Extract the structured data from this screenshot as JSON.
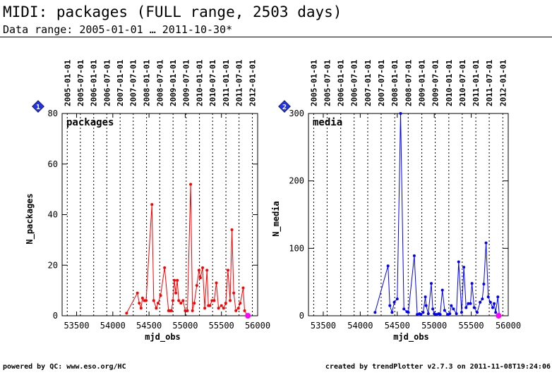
{
  "header": {
    "title": "MIDI: packages (FULL range, 2503 days)",
    "subtitle": "Data range: 2005-01-01 … 2011-10-30*"
  },
  "footer": {
    "left": "powered by QC: www.eso.org/HC",
    "right": "created by trendPlotter v2.7.3 on 2011-11-08T19:24:06"
  },
  "colors": {
    "packages": "#ff0000",
    "media": "#0000ff",
    "marker": "#2233ee",
    "latest": "#ff00ff"
  },
  "chart_data": [
    {
      "type": "line",
      "index": "1",
      "panel_label": "packages",
      "xlabel": "mjd_obs",
      "ylabel": "N_packages",
      "xlim": [
        53300,
        56000
      ],
      "ylim": [
        0,
        80
      ],
      "x_ticks": [
        53500,
        54000,
        54500,
        55000,
        55500,
        56000
      ],
      "y_ticks": [
        0,
        20,
        40,
        60,
        80
      ],
      "date_ticks": [
        "2005-01-01",
        "2005-07-01",
        "2006-01-01",
        "2006-07-01",
        "2007-01-01",
        "2007-07-01",
        "2008-01-01",
        "2008-07-01",
        "2009-01-01",
        "2009-07-01",
        "2010-01-01",
        "2010-07-01",
        "2011-01-01",
        "2011-07-01",
        "2012-01-01"
      ],
      "date_tick_mjd": [
        53371,
        53552,
        53736,
        53917,
        54101,
        54282,
        54466,
        54648,
        54832,
        55013,
        55197,
        55378,
        55562,
        55743,
        55927
      ],
      "grid": "vertical dotted at date ticks",
      "x": [
        54190,
        54340,
        54365,
        54390,
        54410,
        54435,
        54460,
        54540,
        54565,
        54600,
        54625,
        54660,
        54715,
        54770,
        54790,
        54810,
        54830,
        54850,
        54870,
        54890,
        54910,
        54940,
        54970,
        55000,
        55030,
        55075,
        55100,
        55125,
        55160,
        55190,
        55210,
        55240,
        55270,
        55300,
        55320,
        55340,
        55370,
        55400,
        55430,
        55460,
        55500,
        55530,
        55560,
        55590,
        55620,
        55645,
        55670,
        55700,
        55735,
        55760,
        55800,
        55820,
        55860,
        55870
      ],
      "values": [
        1,
        9,
        5,
        3,
        7,
        6,
        6,
        44,
        6,
        3,
        5,
        8,
        19,
        2,
        2,
        2,
        6,
        14,
        9,
        14,
        6,
        5,
        6,
        2,
        2,
        52,
        2,
        5,
        12,
        18,
        15,
        19,
        3,
        18,
        4,
        4,
        6,
        6,
        13,
        3,
        4,
        3,
        5,
        18,
        6,
        34,
        9,
        2,
        3,
        5,
        11,
        2,
        0,
        0
      ],
      "latest": [
        55865,
        0
      ]
    },
    {
      "type": "line",
      "index": "2",
      "panel_label": "media",
      "xlabel": "mjd_obs",
      "ylabel": "N_media",
      "xlim": [
        53300,
        56000
      ],
      "ylim": [
        0,
        300
      ],
      "x_ticks": [
        53500,
        54000,
        54500,
        55000,
        55500,
        56000
      ],
      "y_ticks": [
        0,
        100,
        200,
        300
      ],
      "date_ticks": [
        "2005-01-01",
        "2005-07-01",
        "2006-01-01",
        "2006-07-01",
        "2007-01-01",
        "2007-07-01",
        "2008-01-01",
        "2008-07-01",
        "2009-01-01",
        "2009-07-01",
        "2010-01-01",
        "2010-07-01",
        "2011-01-01",
        "2011-07-01",
        "2012-01-01"
      ],
      "date_tick_mjd": [
        53371,
        53552,
        53736,
        53917,
        54101,
        54282,
        54466,
        54648,
        54832,
        55013,
        55197,
        55378,
        55562,
        55743,
        55927
      ],
      "grid": "vertical dotted at date ticks",
      "x": [
        54200,
        54375,
        54400,
        54430,
        54460,
        54500,
        54545,
        54590,
        54630,
        54650,
        54730,
        54770,
        54800,
        54820,
        54850,
        54880,
        54890,
        54920,
        54960,
        54980,
        55000,
        55030,
        55060,
        55080,
        55110,
        55140,
        55180,
        55210,
        55230,
        55260,
        55300,
        55330,
        55370,
        55400,
        55430,
        55460,
        55490,
        55510,
        55540,
        55580,
        55620,
        55650,
        55670,
        55700,
        55730,
        55760,
        55790,
        55810,
        55830,
        55860,
        55880
      ],
      "values": [
        5,
        74,
        15,
        5,
        20,
        25,
        300,
        10,
        6,
        5,
        89,
        2,
        3,
        2,
        5,
        28,
        15,
        3,
        48,
        10,
        3,
        2,
        3,
        2,
        38,
        8,
        2,
        3,
        15,
        10,
        3,
        80,
        5,
        72,
        12,
        18,
        18,
        48,
        12,
        5,
        20,
        25,
        47,
        108,
        28,
        20,
        12,
        18,
        5,
        28,
        0
      ],
      "latest": [
        55870,
        0
      ]
    }
  ]
}
